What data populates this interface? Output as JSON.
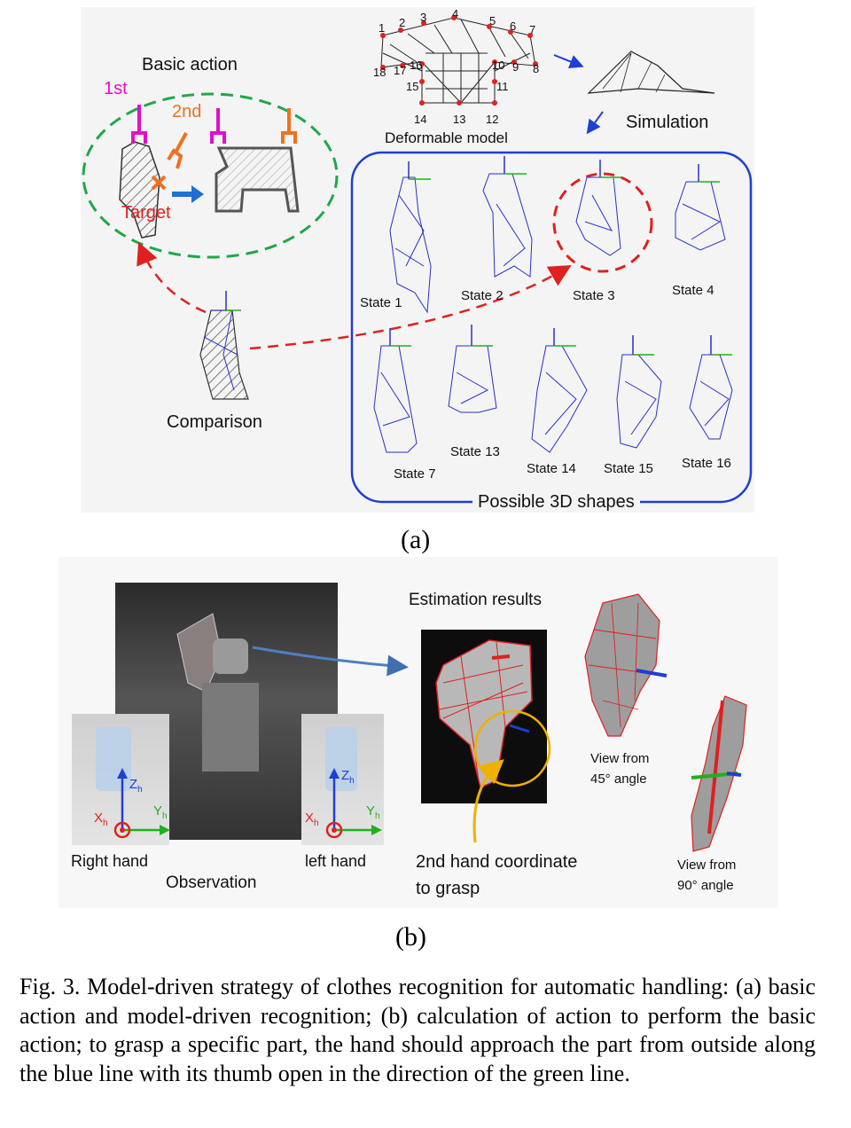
{
  "panel_a": {
    "basic_action": "Basic action",
    "first": "1st",
    "second": "2nd",
    "target": "Target",
    "deformable_model": "Deformable model",
    "simulation": "Simulation",
    "comparison": "Comparison",
    "possible_shapes": "Possible 3D shapes",
    "model_points": [
      "1",
      "2",
      "3",
      "4",
      "5",
      "6",
      "7",
      "8",
      "9",
      "10",
      "11",
      "12",
      "13",
      "14",
      "15",
      "16",
      "17",
      "18"
    ],
    "states": [
      "State 1",
      "State 2",
      "State 3",
      "State 4",
      "State 7",
      "State 13",
      "State 14",
      "State 15",
      "State 16"
    ],
    "sub_caption": "(a)"
  },
  "panel_b": {
    "estimation_results": "Estimation results",
    "right_hand": "Right hand",
    "left_hand": "left hand",
    "observation": "Observation",
    "grasp_line1": "2nd hand coordinate",
    "grasp_line2": "to grasp",
    "view45_line1": "View from",
    "view45_line2": "45°  angle",
    "view90_line1": "View from",
    "view90_line2": "90°  angle",
    "axis_z": "Z",
    "axis_y": "Y",
    "axis_x": "X",
    "axis_sub": "h",
    "sub_caption": "(b)"
  },
  "caption": "Fig. 3.   Model-driven strategy of clothes recognition for automatic handling: (a) basic action and model-driven recognition; (b) calculation of action to perform the basic action; to grasp a specific part, the hand should approach the part from outside along the blue line with its thumb open in the direction of the green line."
}
